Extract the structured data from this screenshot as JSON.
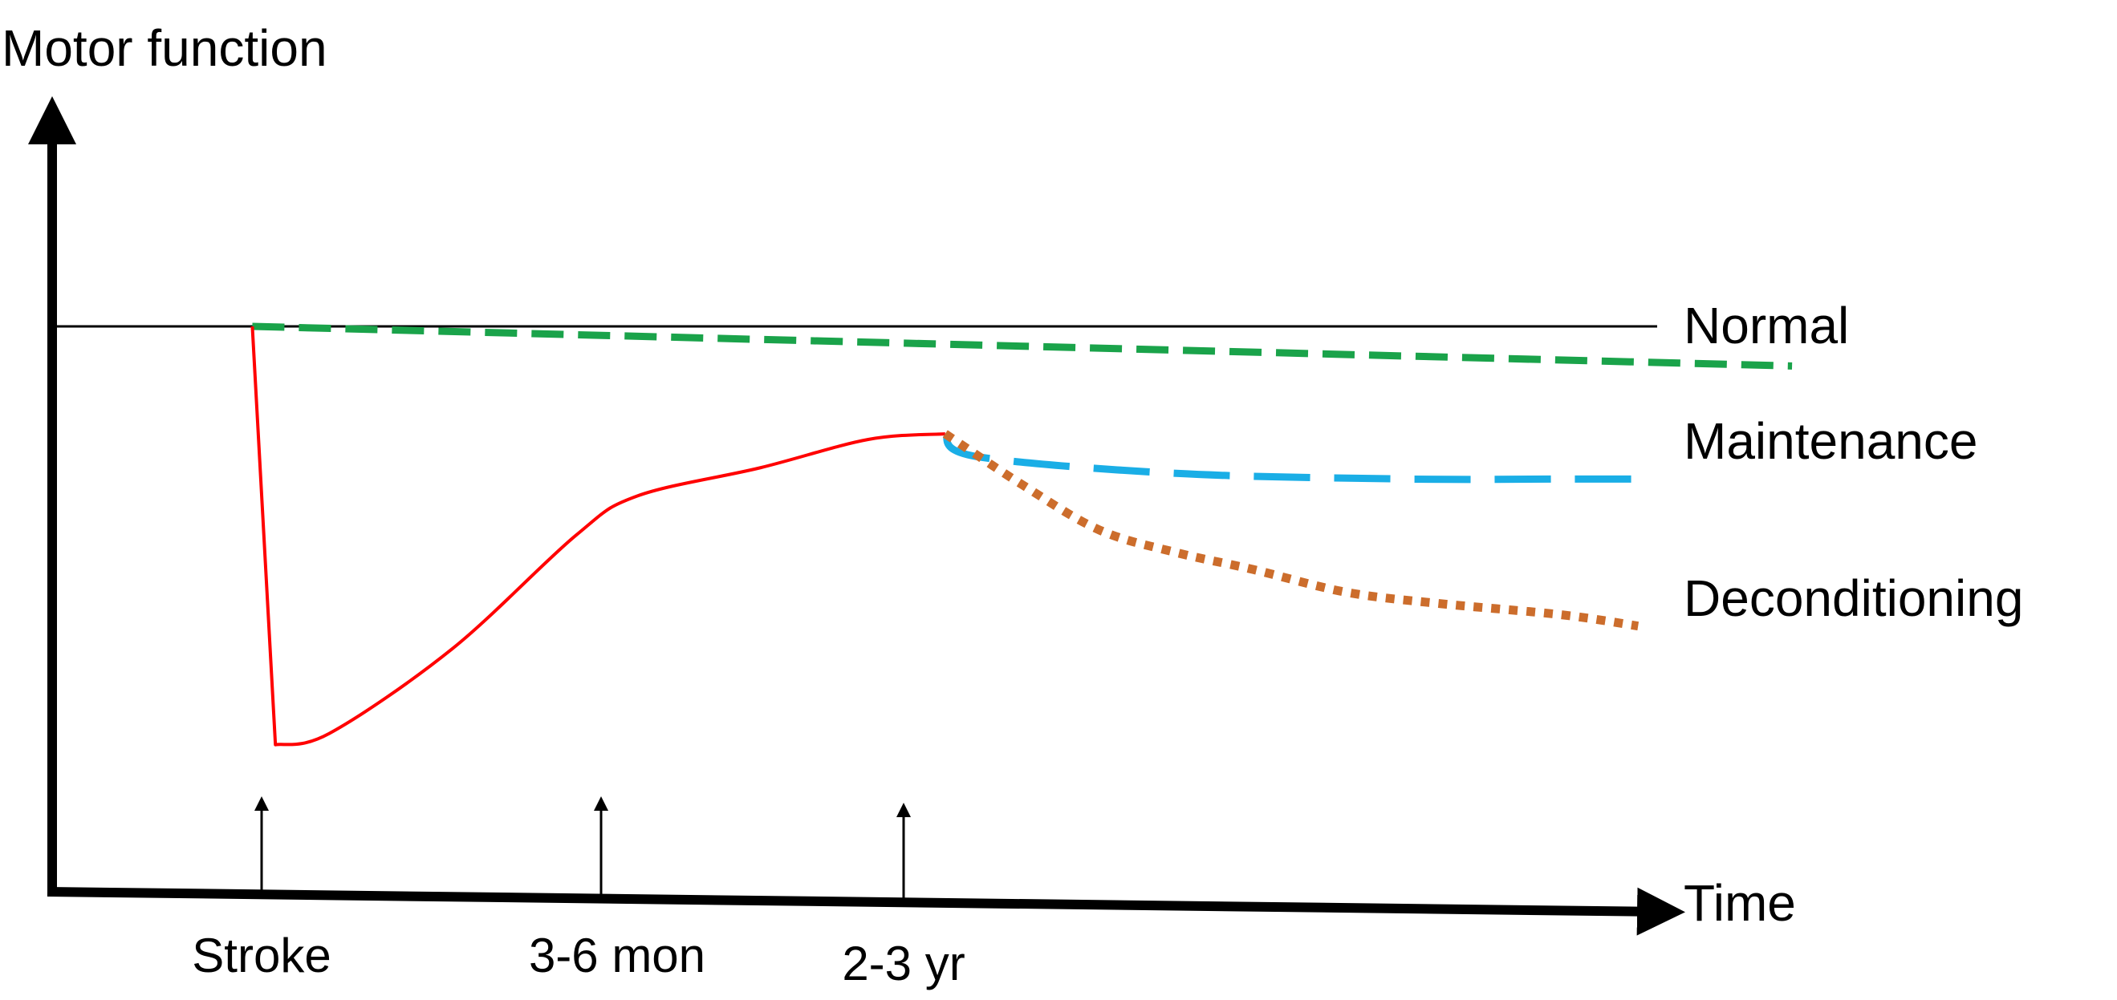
{
  "chart_data": {
    "type": "line",
    "ylabel": "Motor function",
    "xlabel": "Time",
    "x_markers": [
      "Stroke",
      "3-6 mon",
      "2-3 yr"
    ],
    "reference_line": {
      "y": 100
    },
    "series": [
      {
        "name": "Normal",
        "color": "#1aa34a",
        "style": "dashed",
        "points": [
          [
            0.0,
            100
          ],
          [
            1.0,
            93
          ]
        ]
      },
      {
        "name": "",
        "color": "#ff0000",
        "style": "solid",
        "points": [
          [
            0.0,
            100
          ],
          [
            0.015,
            26
          ],
          [
            0.05,
            28
          ],
          [
            0.13,
            43
          ],
          [
            0.21,
            63
          ],
          [
            0.25,
            70
          ],
          [
            0.33,
            75
          ],
          [
            0.4,
            80
          ],
          [
            0.45,
            81
          ]
        ]
      },
      {
        "name": "Maintenance",
        "color": "#1aaee6",
        "style": "dashed",
        "points": [
          [
            0.45,
            81
          ],
          [
            0.47,
            77
          ],
          [
            0.6,
            74
          ],
          [
            0.75,
            73
          ],
          [
            0.85,
            73
          ],
          [
            0.9,
            73
          ]
        ]
      },
      {
        "name": "Deconditioning",
        "color": "#cc6d2c",
        "style": "dotted",
        "points": [
          [
            0.45,
            81
          ],
          [
            0.5,
            72
          ],
          [
            0.55,
            64
          ],
          [
            0.6,
            60
          ],
          [
            0.65,
            57
          ],
          [
            0.71,
            53
          ],
          [
            0.77,
            51
          ],
          [
            0.85,
            49
          ],
          [
            0.9,
            47
          ]
        ]
      }
    ],
    "ylim": [
      0,
      140
    ],
    "xlim": [
      -0.13,
      0.915
    ],
    "grid": false,
    "legend": "none"
  }
}
